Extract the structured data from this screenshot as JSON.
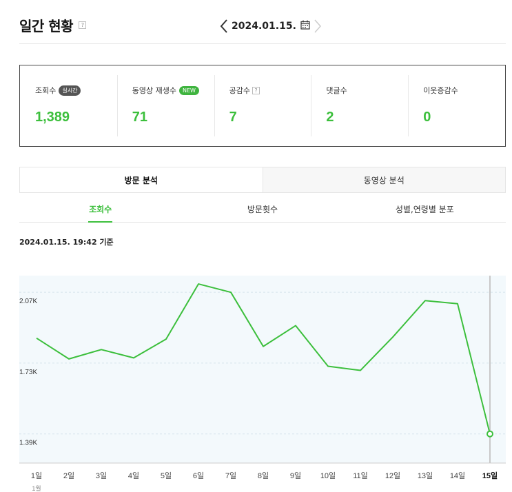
{
  "header": {
    "title": "일간 현황",
    "help": "?",
    "date": "2024.01.15."
  },
  "stats": [
    {
      "label": "조회수",
      "badge": "실시간",
      "badge_color": "#555555",
      "value": "1,389"
    },
    {
      "label": "동영상 재생수",
      "badge": "NEW",
      "badge_color": "#3fb43f",
      "value": "71"
    },
    {
      "label": "공감수",
      "help": "?",
      "value": "7"
    },
    {
      "label": "댓글수",
      "value": "2"
    },
    {
      "label": "이웃증감수",
      "value": "0"
    }
  ],
  "tabs": [
    {
      "label": "방문 분석",
      "active": true
    },
    {
      "label": "동영상 분석",
      "active": false
    }
  ],
  "subtabs": [
    {
      "label": "조회수",
      "active": true
    },
    {
      "label": "방문횟수",
      "active": false
    },
    {
      "label": "성별,연령별 분포",
      "active": false
    }
  ],
  "updated_text": "2024.01.15. 19:42 기준",
  "colors": {
    "accent": "#3cbf3c",
    "chart_bg": "#f3f9fc"
  },
  "chart_data": {
    "type": "line",
    "x": [
      "1일",
      "2일",
      "3일",
      "4일",
      "5일",
      "6일",
      "7일",
      "8일",
      "9일",
      "10일",
      "11일",
      "12일",
      "13일",
      "14일",
      "15일"
    ],
    "x_sub": "1월",
    "series": [
      {
        "values": [
          1850,
          1750,
          1795,
          1755,
          1845,
          2110,
          2070,
          1810,
          1910,
          1715,
          1695,
          1855,
          2030,
          2015,
          1390
        ]
      }
    ],
    "yticks": [
      {
        "value": 2070,
        "label": "2.07K"
      },
      {
        "value": 1730,
        "label": "1.73K"
      },
      {
        "value": 1390,
        "label": "1.39K"
      }
    ],
    "ylim": [
      1250,
      2150
    ],
    "highlight_index": 14
  }
}
